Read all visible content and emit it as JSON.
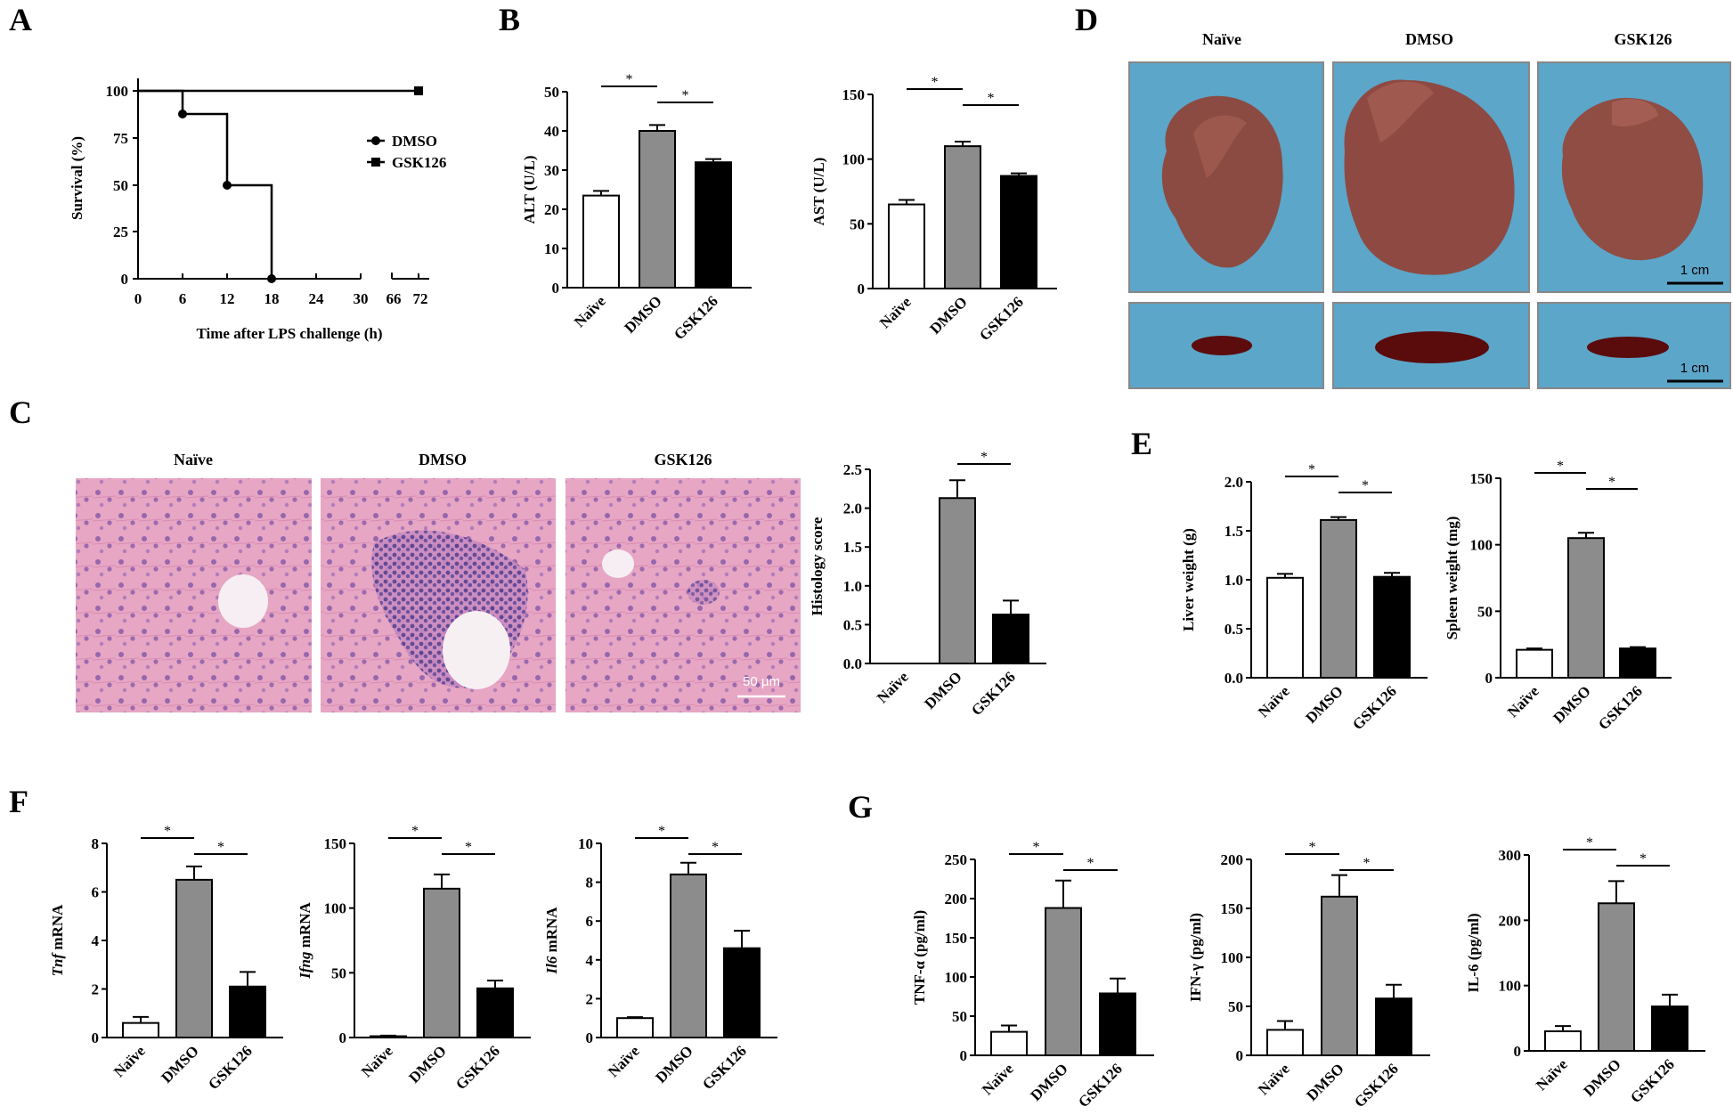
{
  "panels": {
    "A": "A",
    "B": "B",
    "C": "C",
    "D": "D",
    "E": "E",
    "F": "F",
    "G": "G"
  },
  "groups": [
    "Naïve",
    "DMSO",
    "GSK126"
  ],
  "photo_headers": {
    "D": [
      "Naïve",
      "DMSO",
      "GSK126"
    ],
    "C": [
      "Naïve",
      "DMSO",
      "GSK126"
    ]
  },
  "scale_bars": {
    "liver": "1 cm",
    "spleen": "1 cm",
    "histology": "50 μm"
  },
  "colors": {
    "naive": "#ffffff",
    "dmso": "#8c8c8c",
    "gsk126": "#000000",
    "tray_blue": "#5da6c8",
    "he_pink": "#e3a1c0",
    "he_purple": "#7b4f9e",
    "liver_brown": "#8a4a40",
    "spleen_red": "#5a0c0c"
  },
  "chart_data": [
    {
      "id": "A",
      "type": "line",
      "title": "",
      "xlabel": "Time after LPS challenge (h)",
      "ylabel": "Survival (%)",
      "x_ticks": [
        "0",
        "6",
        "12",
        "18",
        "24",
        "30",
        "66",
        "72"
      ],
      "y_ticks": [
        "0",
        "25",
        "50",
        "75",
        "100"
      ],
      "ylim": [
        0,
        100
      ],
      "axis_break": true,
      "legend_position": "right",
      "series": [
        {
          "name": "DMSO",
          "marker": "circle",
          "x": [
            0,
            6,
            12,
            18
          ],
          "y": [
            100,
            87.5,
            50,
            0
          ],
          "step": true
        },
        {
          "name": "GSK126",
          "marker": "square",
          "x": [
            0,
            72
          ],
          "y": [
            100,
            100
          ],
          "step": true
        }
      ]
    },
    {
      "id": "B-ALT",
      "type": "bar",
      "ylabel": "ALT (U/L)",
      "ylim": [
        0,
        50
      ],
      "y_ticks": [
        "0",
        "10",
        "20",
        "30",
        "40",
        "50"
      ],
      "categories": [
        "Naïve",
        "DMSO",
        "GSK126"
      ],
      "values": [
        23.5,
        40,
        32
      ],
      "errors": [
        1.2,
        1.5,
        0.8
      ],
      "significance": [
        {
          "pair": [
            0,
            1
          ],
          "label": "*"
        },
        {
          "pair": [
            1,
            2
          ],
          "label": "*"
        }
      ]
    },
    {
      "id": "B-AST",
      "type": "bar",
      "ylabel": "AST (U/L)",
      "ylim": [
        0,
        150
      ],
      "y_ticks": [
        "0",
        "50",
        "100",
        "150"
      ],
      "categories": [
        "Naïve",
        "DMSO",
        "GSK126"
      ],
      "values": [
        65,
        110,
        87
      ],
      "errors": [
        3.5,
        3.5,
        2
      ],
      "significance": [
        {
          "pair": [
            0,
            1
          ],
          "label": "*"
        },
        {
          "pair": [
            1,
            2
          ],
          "label": "*"
        }
      ]
    },
    {
      "id": "C-Histology",
      "type": "bar",
      "ylabel": "Histology score",
      "ylim": [
        0,
        2.5
      ],
      "y_ticks": [
        "0.0",
        "0.5",
        "1.0",
        "1.5",
        "2.0",
        "2.5"
      ],
      "categories": [
        "Naïve",
        "DMSO",
        "GSK126"
      ],
      "values": [
        0,
        2.13,
        0.63
      ],
      "errors": [
        0,
        0.23,
        0.18
      ],
      "significance": [
        {
          "pair": [
            1,
            2
          ],
          "label": "*"
        }
      ]
    },
    {
      "id": "E-Liver",
      "type": "bar",
      "ylabel": "Liver weight (g)",
      "ylim": [
        0,
        2.0
      ],
      "y_ticks": [
        "0.0",
        "0.5",
        "1.0",
        "1.5",
        "2.0"
      ],
      "categories": [
        "Naïve",
        "DMSO",
        "GSK126"
      ],
      "values": [
        1.02,
        1.61,
        1.03
      ],
      "errors": [
        0.04,
        0.03,
        0.04
      ],
      "significance": [
        {
          "pair": [
            0,
            1
          ],
          "label": "*"
        },
        {
          "pair": [
            1,
            2
          ],
          "label": "*"
        }
      ]
    },
    {
      "id": "E-Spleen",
      "type": "bar",
      "ylabel": "Spleen weight (mg)",
      "ylim": [
        0,
        150
      ],
      "y_ticks": [
        "0",
        "50",
        "100",
        "150"
      ],
      "categories": [
        "Naïve",
        "DMSO",
        "GSK126"
      ],
      "values": [
        21,
        105,
        22
      ],
      "errors": [
        1,
        4,
        1
      ],
      "significance": [
        {
          "pair": [
            0,
            1
          ],
          "label": "*"
        },
        {
          "pair": [
            1,
            2
          ],
          "label": "*"
        }
      ]
    },
    {
      "id": "F-Tnf",
      "type": "bar",
      "ylabel": "Tnf mRNA",
      "ylabel_italic_part": "Tnf",
      "ylim": [
        0,
        8
      ],
      "y_ticks": [
        "0",
        "2",
        "4",
        "6",
        "8"
      ],
      "categories": [
        "Naïve",
        "DMSO",
        "GSK126"
      ],
      "values": [
        0.6,
        6.5,
        2.1
      ],
      "errors": [
        0.25,
        0.55,
        0.6
      ],
      "significance": [
        {
          "pair": [
            0,
            1
          ],
          "label": "*"
        },
        {
          "pair": [
            1,
            2
          ],
          "label": "*"
        }
      ]
    },
    {
      "id": "F-Ifng",
      "type": "bar",
      "ylabel": "Ifng mRNA",
      "ylabel_italic_part": "Ifng",
      "ylim": [
        0,
        150
      ],
      "y_ticks": [
        "0",
        "50",
        "100",
        "150"
      ],
      "categories": [
        "Naïve",
        "DMSO",
        "GSK126"
      ],
      "values": [
        1,
        115,
        38
      ],
      "errors": [
        0.5,
        11,
        6
      ],
      "significance": [
        {
          "pair": [
            0,
            1
          ],
          "label": "*"
        },
        {
          "pair": [
            1,
            2
          ],
          "label": "*"
        }
      ]
    },
    {
      "id": "F-Il6",
      "type": "bar",
      "ylabel": "Il6 mRNA",
      "ylabel_italic_part": "Il6",
      "ylim": [
        0,
        10
      ],
      "y_ticks": [
        "0",
        "2",
        "4",
        "6",
        "8",
        "10"
      ],
      "categories": [
        "Naïve",
        "DMSO",
        "GSK126"
      ],
      "values": [
        1.0,
        8.4,
        4.6
      ],
      "errors": [
        0.05,
        0.6,
        0.9
      ],
      "significance": [
        {
          "pair": [
            0,
            1
          ],
          "label": "*"
        },
        {
          "pair": [
            1,
            2
          ],
          "label": "*"
        }
      ]
    },
    {
      "id": "G-TNF",
      "type": "bar",
      "ylabel": "TNF-α (pg/ml)",
      "ylim": [
        0,
        250
      ],
      "y_ticks": [
        "0",
        "50",
        "100",
        "150",
        "200",
        "250"
      ],
      "categories": [
        "Naïve",
        "DMSO",
        "GSK126"
      ],
      "values": [
        30,
        188,
        79
      ],
      "errors": [
        8,
        35,
        19
      ],
      "significance": [
        {
          "pair": [
            0,
            1
          ],
          "label": "*"
        },
        {
          "pair": [
            1,
            2
          ],
          "label": "*"
        }
      ]
    },
    {
      "id": "G-IFN",
      "type": "bar",
      "ylabel": "IFN-γ (pg/ml)",
      "ylim": [
        0,
        200
      ],
      "y_ticks": [
        "0",
        "50",
        "100",
        "150",
        "200"
      ],
      "categories": [
        "Naïve",
        "DMSO",
        "GSK126"
      ],
      "values": [
        26,
        162,
        58
      ],
      "errors": [
        9,
        22,
        14
      ],
      "significance": [
        {
          "pair": [
            0,
            1
          ],
          "label": "*"
        },
        {
          "pair": [
            1,
            2
          ],
          "label": "*"
        }
      ]
    },
    {
      "id": "G-IL6",
      "type": "bar",
      "ylabel": "IL-6 (pg/ml)",
      "ylim": [
        0,
        300
      ],
      "y_ticks": [
        "0",
        "100",
        "200",
        "300"
      ],
      "categories": [
        "Naïve",
        "DMSO",
        "GSK126"
      ],
      "values": [
        30,
        226,
        68
      ],
      "errors": [
        8,
        34,
        18
      ],
      "significance": [
        {
          "pair": [
            0,
            1
          ],
          "label": "*"
        },
        {
          "pair": [
            1,
            2
          ],
          "label": "*"
        }
      ]
    }
  ]
}
